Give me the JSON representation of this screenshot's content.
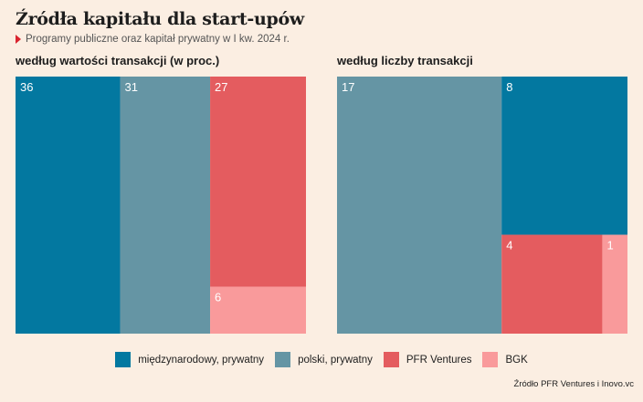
{
  "header": {
    "title": "Źródła kapitału dla start-upów",
    "subtitle": "Programy publiczne oraz kapitał prywatny w I kw. 2024 r."
  },
  "colors": {
    "intl_private": "#0378a0",
    "pl_private": "#6595a4",
    "pfr": "#e45c5f",
    "bgk": "#f99a9b",
    "accent": "#d9232e"
  },
  "chart_data": [
    {
      "type": "treemap",
      "title": "według wartości transakcji (w proc.)",
      "series": [
        {
          "name": "międzynarodowy, prywatny",
          "value": 36
        },
        {
          "name": "polski, prywatny",
          "value": 31
        },
        {
          "name": "PFR Ventures",
          "value": 27
        },
        {
          "name": "BGK",
          "value": 6
        }
      ]
    },
    {
      "type": "treemap",
      "title": "według liczby transakcji",
      "series": [
        {
          "name": "polski, prywatny",
          "value": 17
        },
        {
          "name": "międzynarodowy, prywatny",
          "value": 8
        },
        {
          "name": "PFR Ventures",
          "value": 4
        },
        {
          "name": "BGK",
          "value": 1
        }
      ]
    }
  ],
  "legend": [
    {
      "label": "międzynarodowy, prywatny",
      "color": "#0378a0"
    },
    {
      "label": "polski, prywatny",
      "color": "#6595a4"
    },
    {
      "label": "PFR Ventures",
      "color": "#e45c5f"
    },
    {
      "label": "BGK",
      "color": "#f99a9b"
    }
  ],
  "source": "Źródło PFR Ventures i Inovo.vc"
}
